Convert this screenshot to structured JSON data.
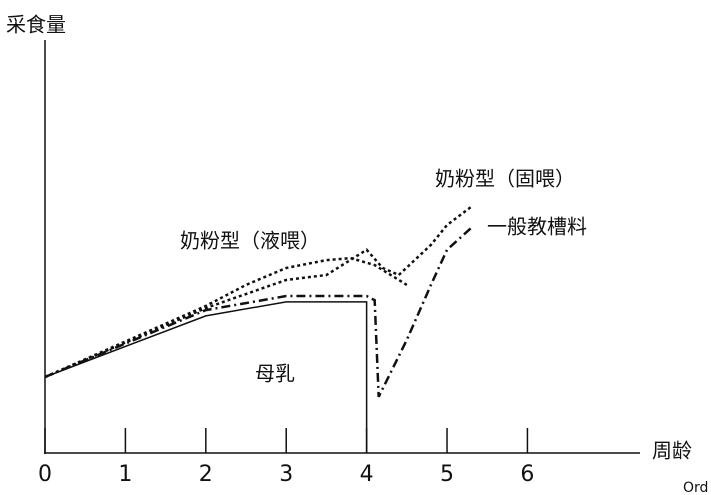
{
  "chart_data": {
    "type": "line",
    "y_label": "采食量",
    "x_label": "周龄",
    "corner_text": "Ord",
    "xlim": [
      0,
      7.4
    ],
    "xticks": [
      0,
      1,
      2,
      3,
      4,
      5,
      6
    ],
    "ylim": [
      0,
      100
    ],
    "series": [
      {
        "name": "母乳",
        "color": "#111111",
        "style": "solid",
        "x": [
          0,
          2,
          3,
          4,
          4
        ],
        "values": [
          18.4,
          33.2,
          36.6,
          36.6,
          0
        ]
      },
      {
        "name": "奶粉型（液喂）",
        "color": "#111111",
        "style": "dotted",
        "x": [
          0,
          2,
          2.5,
          3,
          3.5,
          3.8,
          4.1,
          4.5
        ],
        "values": [
          18.4,
          35.6,
          40.7,
          44.8,
          46.7,
          47.2,
          45.5,
          40.7
        ]
      },
      {
        "name": "奶粉型（固喂）",
        "color": "#111111",
        "style": "dotted",
        "x": [
          0,
          2,
          3,
          3.5,
          4,
          4.2,
          4.4,
          4.8,
          5,
          5.3
        ],
        "values": [
          18.4,
          35.1,
          41.9,
          43.1,
          49.2,
          44.8,
          43.1,
          50.4,
          55.2,
          59.6
        ]
      },
      {
        "name": "一般教槽料",
        "color": "#111111",
        "style": "dashdot",
        "x": [
          0,
          2,
          3,
          4,
          4.1,
          4.15,
          4.5,
          4.8,
          5,
          5.3
        ],
        "values": [
          18.4,
          34.6,
          38.0,
          38.0,
          37.0,
          13.6,
          27.4,
          40.7,
          49.2,
          54.5
        ]
      }
    ]
  }
}
